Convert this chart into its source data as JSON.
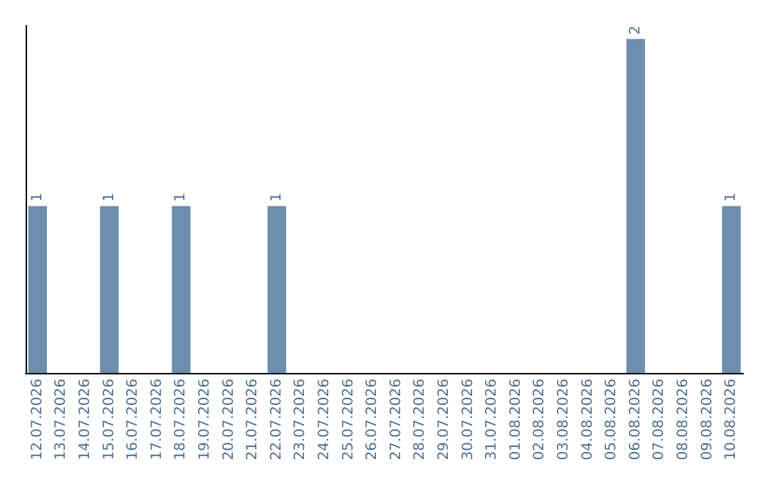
{
  "chart_data": {
    "type": "bar",
    "categories": [
      "12.07.2026",
      "13.07.2026",
      "14.07.2026",
      "15.07.2026",
      "16.07.2026",
      "17.07.2026",
      "18.07.2026",
      "19.07.2026",
      "20.07.2026",
      "21.07.2026",
      "22.07.2026",
      "23.07.2026",
      "24.07.2026",
      "25.07.2026",
      "26.07.2026",
      "27.07.2026",
      "28.07.2026",
      "29.07.2026",
      "30.07.2026",
      "31.07.2026",
      "01.08.2026",
      "02.08.2026",
      "03.08.2026",
      "04.08.2026",
      "05.08.2026",
      "06.08.2026",
      "07.08.2026",
      "08.08.2026",
      "09.08.2026",
      "10.08.2026"
    ],
    "values": [
      1,
      0,
      0,
      1,
      0,
      0,
      1,
      0,
      0,
      0,
      1,
      0,
      0,
      0,
      0,
      0,
      0,
      0,
      0,
      0,
      0,
      0,
      0,
      0,
      0,
      2,
      0,
      0,
      0,
      1
    ],
    "value_labels": [
      "1",
      null,
      null,
      "1",
      null,
      null,
      "1",
      null,
      null,
      null,
      "1",
      null,
      null,
      null,
      null,
      null,
      null,
      null,
      null,
      null,
      null,
      null,
      null,
      null,
      null,
      "2",
      null,
      null,
      null,
      "1"
    ],
    "color": "#6d8fac",
    "tick_labels": "x"
  }
}
